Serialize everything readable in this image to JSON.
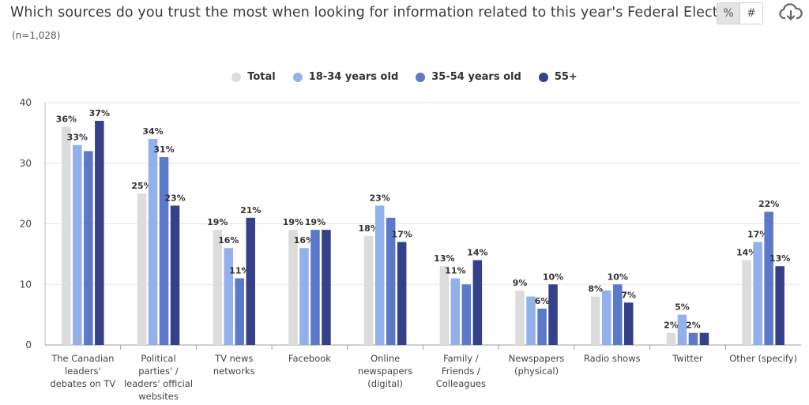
{
  "header": {
    "title": "Which sources do you trust the most when looking for information related to this year's Federal Election?",
    "subtitle": "(n=1,028)"
  },
  "toggle": {
    "percent_label": "%",
    "count_label": "#",
    "active": "percent"
  },
  "icons": {
    "download": "cloud-download-icon"
  },
  "colors": {
    "total": "#dcdcdc",
    "age_18_34": "#92b1ec",
    "age_35_54": "#5b78c9",
    "age_55_plus": "#344189"
  },
  "chart_data": {
    "type": "bar",
    "categories": [
      [
        "The Canadian",
        "leaders'",
        "debates on TV"
      ],
      [
        "Political",
        "parties' /",
        "leaders' official",
        "websites"
      ],
      [
        "TV news",
        "networks"
      ],
      [
        "Facebook"
      ],
      [
        "Online",
        "newspapers",
        "(digital)"
      ],
      [
        "Family /",
        "Friends /",
        "Colleagues"
      ],
      [
        "Newspapers",
        "(physical)"
      ],
      [
        "Radio shows"
      ],
      [
        "Twitter"
      ],
      [
        "Other (specify)"
      ]
    ],
    "series": [
      {
        "name": "Total",
        "color": "#dcdcdc",
        "values": [
          36,
          25,
          19,
          19,
          18,
          13,
          9,
          8,
          2,
          14
        ],
        "labels": [
          "36%",
          "25%",
          "19%",
          "19%",
          "18%",
          "13%",
          "9%",
          "8%",
          "2%",
          "14%"
        ]
      },
      {
        "name": "18-34 years old",
        "color": "#92b1ec",
        "values": [
          33,
          34,
          16,
          16,
          23,
          11,
          8,
          9,
          5,
          17
        ],
        "labels": [
          "33%",
          "34%",
          "16%",
          "16%",
          "23%",
          "11%",
          "",
          "",
          "5%",
          "17%"
        ]
      },
      {
        "name": "35-54 years old",
        "color": "#5b78c9",
        "values": [
          32,
          31,
          11,
          19,
          21,
          10,
          6,
          10,
          2,
          22
        ],
        "labels": [
          "",
          "31%",
          "11%",
          "19%",
          "",
          "",
          "6%",
          "10%",
          "2%",
          "22%"
        ]
      },
      {
        "name": "55+",
        "color": "#344189",
        "values": [
          37,
          23,
          21,
          19,
          17,
          14,
          10,
          7,
          2,
          13
        ],
        "labels": [
          "37%",
          "23%",
          "21%",
          "",
          "17%",
          "14%",
          "10%",
          "7%",
          "",
          "13%"
        ]
      }
    ],
    "yticks": [
      0,
      10,
      20,
      30,
      40
    ],
    "ylim": [
      0,
      40
    ],
    "legend_position": "top-center",
    "grid": true
  }
}
